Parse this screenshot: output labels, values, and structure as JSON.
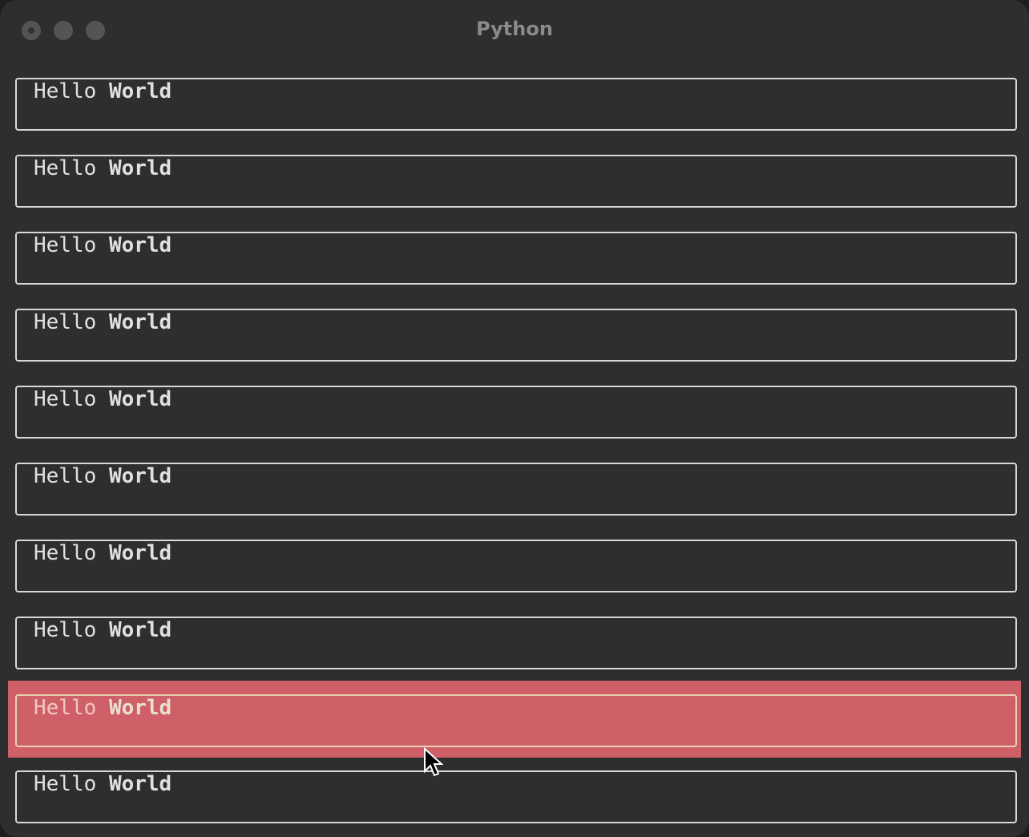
{
  "window": {
    "title": "Python"
  },
  "items": [
    {
      "word1": "Hello",
      "word2": "World",
      "selected": false
    },
    {
      "word1": "Hello",
      "word2": "World",
      "selected": false
    },
    {
      "word1": "Hello",
      "word2": "World",
      "selected": false
    },
    {
      "word1": "Hello",
      "word2": "World",
      "selected": false
    },
    {
      "word1": "Hello",
      "word2": "World",
      "selected": false
    },
    {
      "word1": "Hello",
      "word2": "World",
      "selected": false
    },
    {
      "word1": "Hello",
      "word2": "World",
      "selected": false
    },
    {
      "word1": "Hello",
      "word2": "World",
      "selected": false
    },
    {
      "word1": "Hello",
      "word2": "World",
      "selected": true
    },
    {
      "word1": "Hello",
      "word2": "World",
      "selected": false
    }
  ],
  "colors": {
    "background": "#2e2e2e",
    "selected": "#d06068",
    "border": "#d8d8d8"
  }
}
